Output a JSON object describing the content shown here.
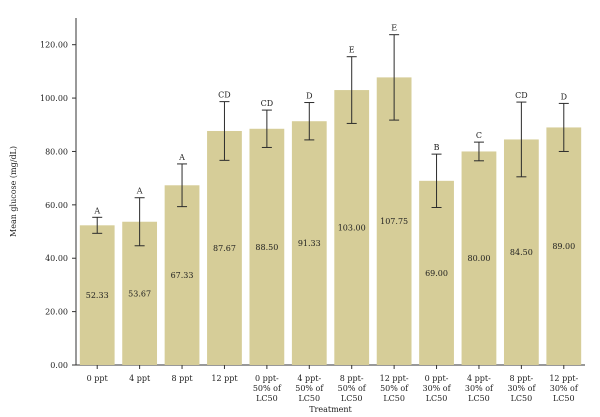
{
  "chart_data": {
    "type": "bar",
    "xlabel": "Treatment",
    "ylabel": "Mean glucose (mg/dL)",
    "ylim": [
      0,
      130
    ],
    "yticks": [
      0,
      20,
      40,
      60,
      80,
      100,
      120
    ],
    "ytick_labels": [
      "0.00",
      "20.00",
      "40.00",
      "60.00",
      "80.00",
      "100.00",
      "120.00"
    ],
    "grid": false,
    "bar_color": "#d6cd98",
    "categories": [
      [
        "0 ppt"
      ],
      [
        "4 ppt"
      ],
      [
        "8 ppt"
      ],
      [
        "12 ppt"
      ],
      [
        "0 ppt-",
        "50% of",
        "LC50"
      ],
      [
        "4 ppt-",
        "50% of",
        "LC50"
      ],
      [
        "8 ppt-",
        "50% of",
        "LC50"
      ],
      [
        "12 ppt-",
        "50% of",
        "LC50"
      ],
      [
        "0 ppt-",
        "30% of",
        "LC50"
      ],
      [
        "4 ppt-",
        "30% of",
        "LC50"
      ],
      [
        "8 ppt-",
        "30% of",
        "LC50"
      ],
      [
        "12 ppt-",
        "30% of",
        "LC50"
      ]
    ],
    "values": [
      52.33,
      53.67,
      67.33,
      87.67,
      88.5,
      91.33,
      103.0,
      107.75,
      69.0,
      80.0,
      84.5,
      89.0
    ],
    "value_labels": [
      "52.33",
      "53.67",
      "67.33",
      "87.67",
      "88.50",
      "91.33",
      "103.00",
      "107.75",
      "69.00",
      "80.00",
      "84.50",
      "89.00"
    ],
    "error_bars": [
      3.0,
      9.0,
      8.0,
      11.0,
      7.0,
      7.0,
      12.5,
      16.0,
      10.0,
      3.5,
      14.0,
      9.0
    ],
    "group_labels": [
      "A",
      "A",
      "A",
      "CD",
      "CD",
      "D",
      "E",
      "E",
      "B",
      "C",
      "CD",
      "D"
    ]
  }
}
